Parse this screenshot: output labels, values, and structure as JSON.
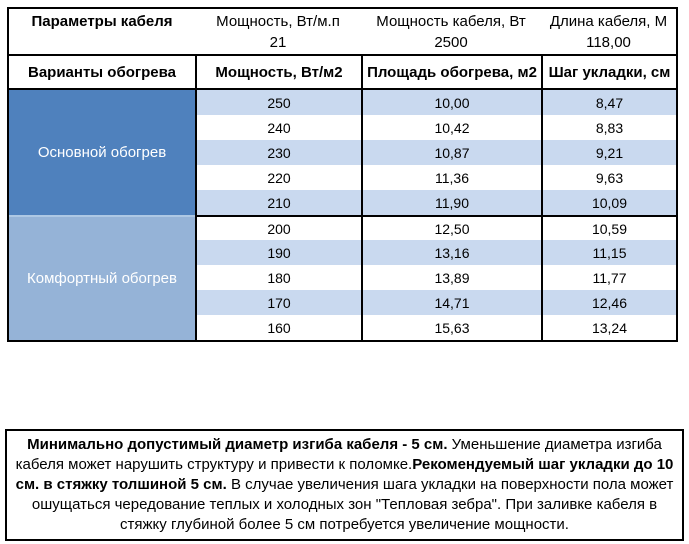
{
  "table": {
    "params": {
      "title": "Параметры кабеля",
      "cols": [
        {
          "label": "Мощность, Вт/м.п",
          "value": "21"
        },
        {
          "label": "Мощность кабеля, Вт",
          "value": "2500"
        },
        {
          "label": "Длина кабеля, М",
          "value": "118,00"
        }
      ]
    },
    "header": [
      "Варианты обогрева",
      "Мощность, Вт/м2",
      "Площадь обогрева, м2",
      "Шаг укладки, см"
    ],
    "sections": [
      {
        "label": "Основной обогрев",
        "rows": [
          [
            "250",
            "10,00",
            "8,47"
          ],
          [
            "240",
            "10,42",
            "8,83"
          ],
          [
            "230",
            "10,87",
            "9,21"
          ],
          [
            "220",
            "11,36",
            "9,63"
          ],
          [
            "210",
            "11,90",
            "10,09"
          ]
        ]
      },
      {
        "label": "Комфортный обогрев",
        "rows": [
          [
            "200",
            "12,50",
            "10,59"
          ],
          [
            "190",
            "13,16",
            "11,15"
          ],
          [
            "180",
            "13,89",
            "11,77"
          ],
          [
            "170",
            "14,71",
            "12,46"
          ],
          [
            "160",
            "15,63",
            "13,24"
          ]
        ]
      }
    ]
  },
  "colors": {
    "main_section": "#4f81bd",
    "comfort_section": "#95b3d7",
    "row_stripe": "#c9d9ef",
    "border": "#000000"
  },
  "note": {
    "segments": [
      {
        "bold": true,
        "text": "Минимально допустимый диаметр изгиба кабеля - 5 см."
      },
      {
        "bold": false,
        "text": "  Уменьшение диаметра изгиба кабеля может нарушить структуру и привести к поломке."
      },
      {
        "bold": true,
        "text": "Рекомендуемый шаг укладки до 10 см. в стяжку толшиной 5 см."
      },
      {
        "bold": false,
        "text": " В  случае увеличения шага укладки на поверхности пола может ошущаться чередование теплых и холодных зон \"Тепловая зебра\". При заливке кабеля в стяжку глубиной более 5 см потребуется увеличение мощности."
      }
    ]
  }
}
